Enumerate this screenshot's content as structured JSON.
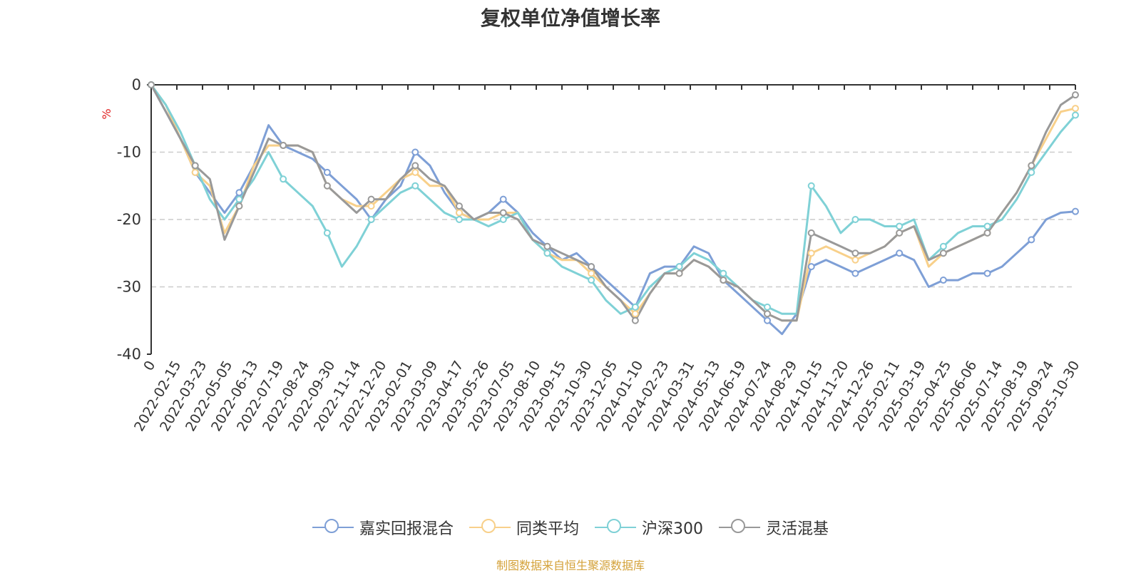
{
  "chart_data": {
    "type": "line",
    "title": "复权单位净值增长率",
    "ylabel": "%",
    "xlabel": "",
    "ylim": [
      -40,
      0
    ],
    "yticks": [
      0,
      -10,
      -20,
      -30,
      -40
    ],
    "xticks": [
      "0",
      "2022-02-15",
      "2022-03-23",
      "2022-05-05",
      "2022-06-13",
      "2022-07-19",
      "2022-08-24",
      "2022-09-30",
      "2022-11-14",
      "2022-12-20",
      "2023-02-01",
      "2023-03-09",
      "2023-04-17",
      "2023-05-26",
      "2023-07-05",
      "2023-08-10",
      "2023-09-15",
      "2023-10-30",
      "2023-12-05",
      "2024-01-10",
      "2024-02-23",
      "2024-03-31",
      "2024-05-13",
      "2024-06-19",
      "2024-07-24",
      "2024-08-29",
      "2024-10-15",
      "2024-11-20",
      "2024-12-26",
      "2025-02-11",
      "2025-03-19",
      "2025-04-25",
      "2025-06-06",
      "2025-07-14",
      "2025-08-19",
      "2025-09-24",
      "2025-10-30"
    ],
    "grid": true,
    "legend_position": "bottom",
    "series": [
      {
        "name": "嘉实回报混合",
        "color": "#7e9fd6",
        "values": [
          0,
          -4,
          -8,
          -13,
          -16,
          -19,
          -16,
          -12,
          -6,
          -9,
          -10,
          -11,
          -13,
          -15,
          -17,
          -20,
          -17,
          -15,
          -10,
          -12,
          -16,
          -19,
          -20,
          -19,
          -17,
          -19,
          -22,
          -24,
          -26,
          -25,
          -27,
          -29,
          -31,
          -33,
          -28,
          -27,
          -27,
          -24,
          -25,
          -29,
          -31,
          -33,
          -35,
          -37,
          -34,
          -27,
          -26,
          -27,
          -28,
          -27,
          -26,
          -25,
          -26,
          -30,
          -29,
          -29,
          -28,
          -28,
          -27,
          -25,
          -23,
          -20,
          -19,
          -18.8
        ]
      },
      {
        "name": "同类平均",
        "color": "#f8d08a",
        "values": [
          0,
          -3,
          -8,
          -13,
          -15,
          -22,
          -18,
          -12,
          -9,
          -9,
          -9,
          -10,
          -15,
          -17,
          -18,
          -18,
          -16,
          -14,
          -13,
          -15,
          -15,
          -19,
          -20,
          -20,
          -19,
          -19,
          -23,
          -25,
          -26,
          -26,
          -28,
          -30,
          -32,
          -34,
          -31,
          -28,
          -28,
          -26,
          -27,
          -29,
          -30,
          -32,
          -34,
          -35,
          -35,
          -25,
          -24,
          -25,
          -26,
          -25,
          -24,
          -22,
          -21,
          -27,
          -25,
          -24,
          -23,
          -22,
          -19,
          -16,
          -12,
          -8,
          -4,
          -3.5
        ]
      },
      {
        "name": "沪深300",
        "color": "#7fd1d6",
        "values": [
          0,
          -3,
          -7,
          -12,
          -17,
          -20,
          -17,
          -14,
          -10,
          -14,
          -16,
          -18,
          -22,
          -27,
          -24,
          -20,
          -18,
          -16,
          -15,
          -17,
          -19,
          -20,
          -20,
          -21,
          -20,
          -19,
          -23,
          -25,
          -27,
          -28,
          -29,
          -32,
          -34,
          -33,
          -30,
          -28,
          -27,
          -25,
          -26,
          -28,
          -30,
          -32,
          -33,
          -34,
          -34,
          -15,
          -18,
          -22,
          -20,
          -20,
          -21,
          -21,
          -20,
          -26,
          -24,
          -22,
          -21,
          -21,
          -20,
          -17,
          -13,
          -10,
          -7,
          -4.5
        ]
      },
      {
        "name": "灵活混基",
        "color": "#999999",
        "values": [
          0,
          -4,
          -8,
          -12,
          -14,
          -23,
          -18,
          -13,
          -8,
          -9,
          -9,
          -10,
          -15,
          -17,
          -19,
          -17,
          -17,
          -14,
          -12,
          -14,
          -15,
          -18,
          -20,
          -19,
          -19,
          -20,
          -23,
          -24,
          -25,
          -26,
          -27,
          -30,
          -32,
          -35,
          -31,
          -28,
          -28,
          -26,
          -27,
          -29,
          -30,
          -32,
          -34,
          -35,
          -35,
          -22,
          -23,
          -24,
          -25,
          -25,
          -24,
          -22,
          -21,
          -26,
          -25,
          -24,
          -23,
          -22,
          -19,
          -16,
          -12,
          -7,
          -3,
          -1.5
        ]
      }
    ]
  },
  "legend": {
    "items": [
      "嘉实回报混合",
      "同类平均",
      "沪深300",
      "灵活混基"
    ]
  },
  "source": {
    "text": "制图数据来自恒生聚源数据库",
    "color": "#d4a23a"
  }
}
